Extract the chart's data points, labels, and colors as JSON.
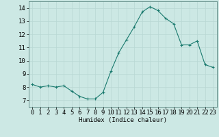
{
  "x": [
    0,
    1,
    2,
    3,
    4,
    5,
    6,
    7,
    8,
    9,
    10,
    11,
    12,
    13,
    14,
    15,
    16,
    17,
    18,
    19,
    20,
    21,
    22,
    23
  ],
  "y": [
    8.2,
    8.0,
    8.1,
    8.0,
    8.1,
    7.7,
    7.3,
    7.1,
    7.1,
    7.6,
    9.2,
    10.6,
    11.6,
    12.6,
    13.7,
    14.1,
    13.8,
    13.2,
    12.8,
    11.2,
    11.2,
    11.5,
    9.7,
    9.5
  ],
  "line_color": "#1a7a6e",
  "marker": "+",
  "bg_color": "#cce8e4",
  "grid_color": "#b8d8d4",
  "xlabel": "Humidex (Indice chaleur)",
  "ylim": [
    6.5,
    14.5
  ],
  "xlim": [
    -0.5,
    23.5
  ],
  "yticks": [
    7,
    8,
    9,
    10,
    11,
    12,
    13,
    14
  ],
  "xticks": [
    0,
    1,
    2,
    3,
    4,
    5,
    6,
    7,
    8,
    9,
    10,
    11,
    12,
    13,
    14,
    15,
    16,
    17,
    18,
    19,
    20,
    21,
    22,
    23
  ],
  "label_fontsize": 6.5,
  "tick_fontsize": 6.5
}
